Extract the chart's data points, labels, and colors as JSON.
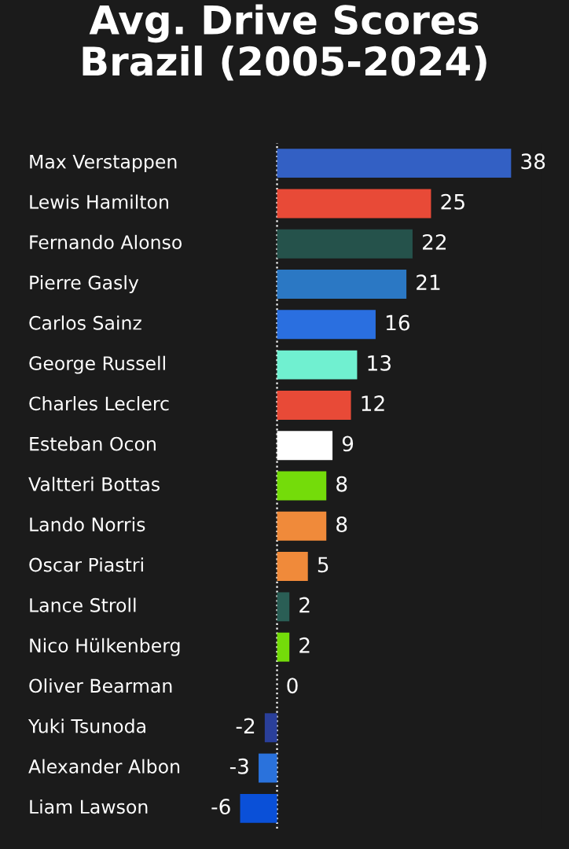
{
  "chart_data": {
    "type": "bar",
    "orientation": "horizontal",
    "title": "Avg. Drive Scores\nBrazil (2005-2024)",
    "categories": [
      "Max Verstappen",
      "Lewis Hamilton",
      "Fernando Alonso",
      "Pierre Gasly",
      "Carlos Sainz",
      "George Russell",
      "Charles Leclerc",
      "Esteban Ocon",
      "Valtteri Bottas",
      "Lando Norris",
      "Oscar Piastri",
      "Lance Stroll",
      "Nico Hülkenberg",
      "Oliver Bearman",
      "Yuki Tsunoda",
      "Alexander Albon",
      "Liam Lawson"
    ],
    "values": [
      38,
      25,
      22,
      21,
      16,
      13,
      12,
      9,
      8,
      8,
      5,
      2,
      2,
      0,
      -2,
      -3,
      -6
    ],
    "colors": [
      "#3360c4",
      "#e84a37",
      "#25524b",
      "#2b78c4",
      "#2a6fe0",
      "#70f0d0",
      "#e84a37",
      "#ffffff",
      "#74dc0a",
      "#f08a3a",
      "#f08a3a",
      "#2a5e55",
      "#74dc0a",
      "#777777",
      "#2a3f9a",
      "#2a72dc",
      "#0a50d8"
    ],
    "ref_lines": [
      {
        "axis": "x",
        "value": 0,
        "color": "#ffffff",
        "line_style": "dotted"
      }
    ],
    "data_labels": true
  }
}
